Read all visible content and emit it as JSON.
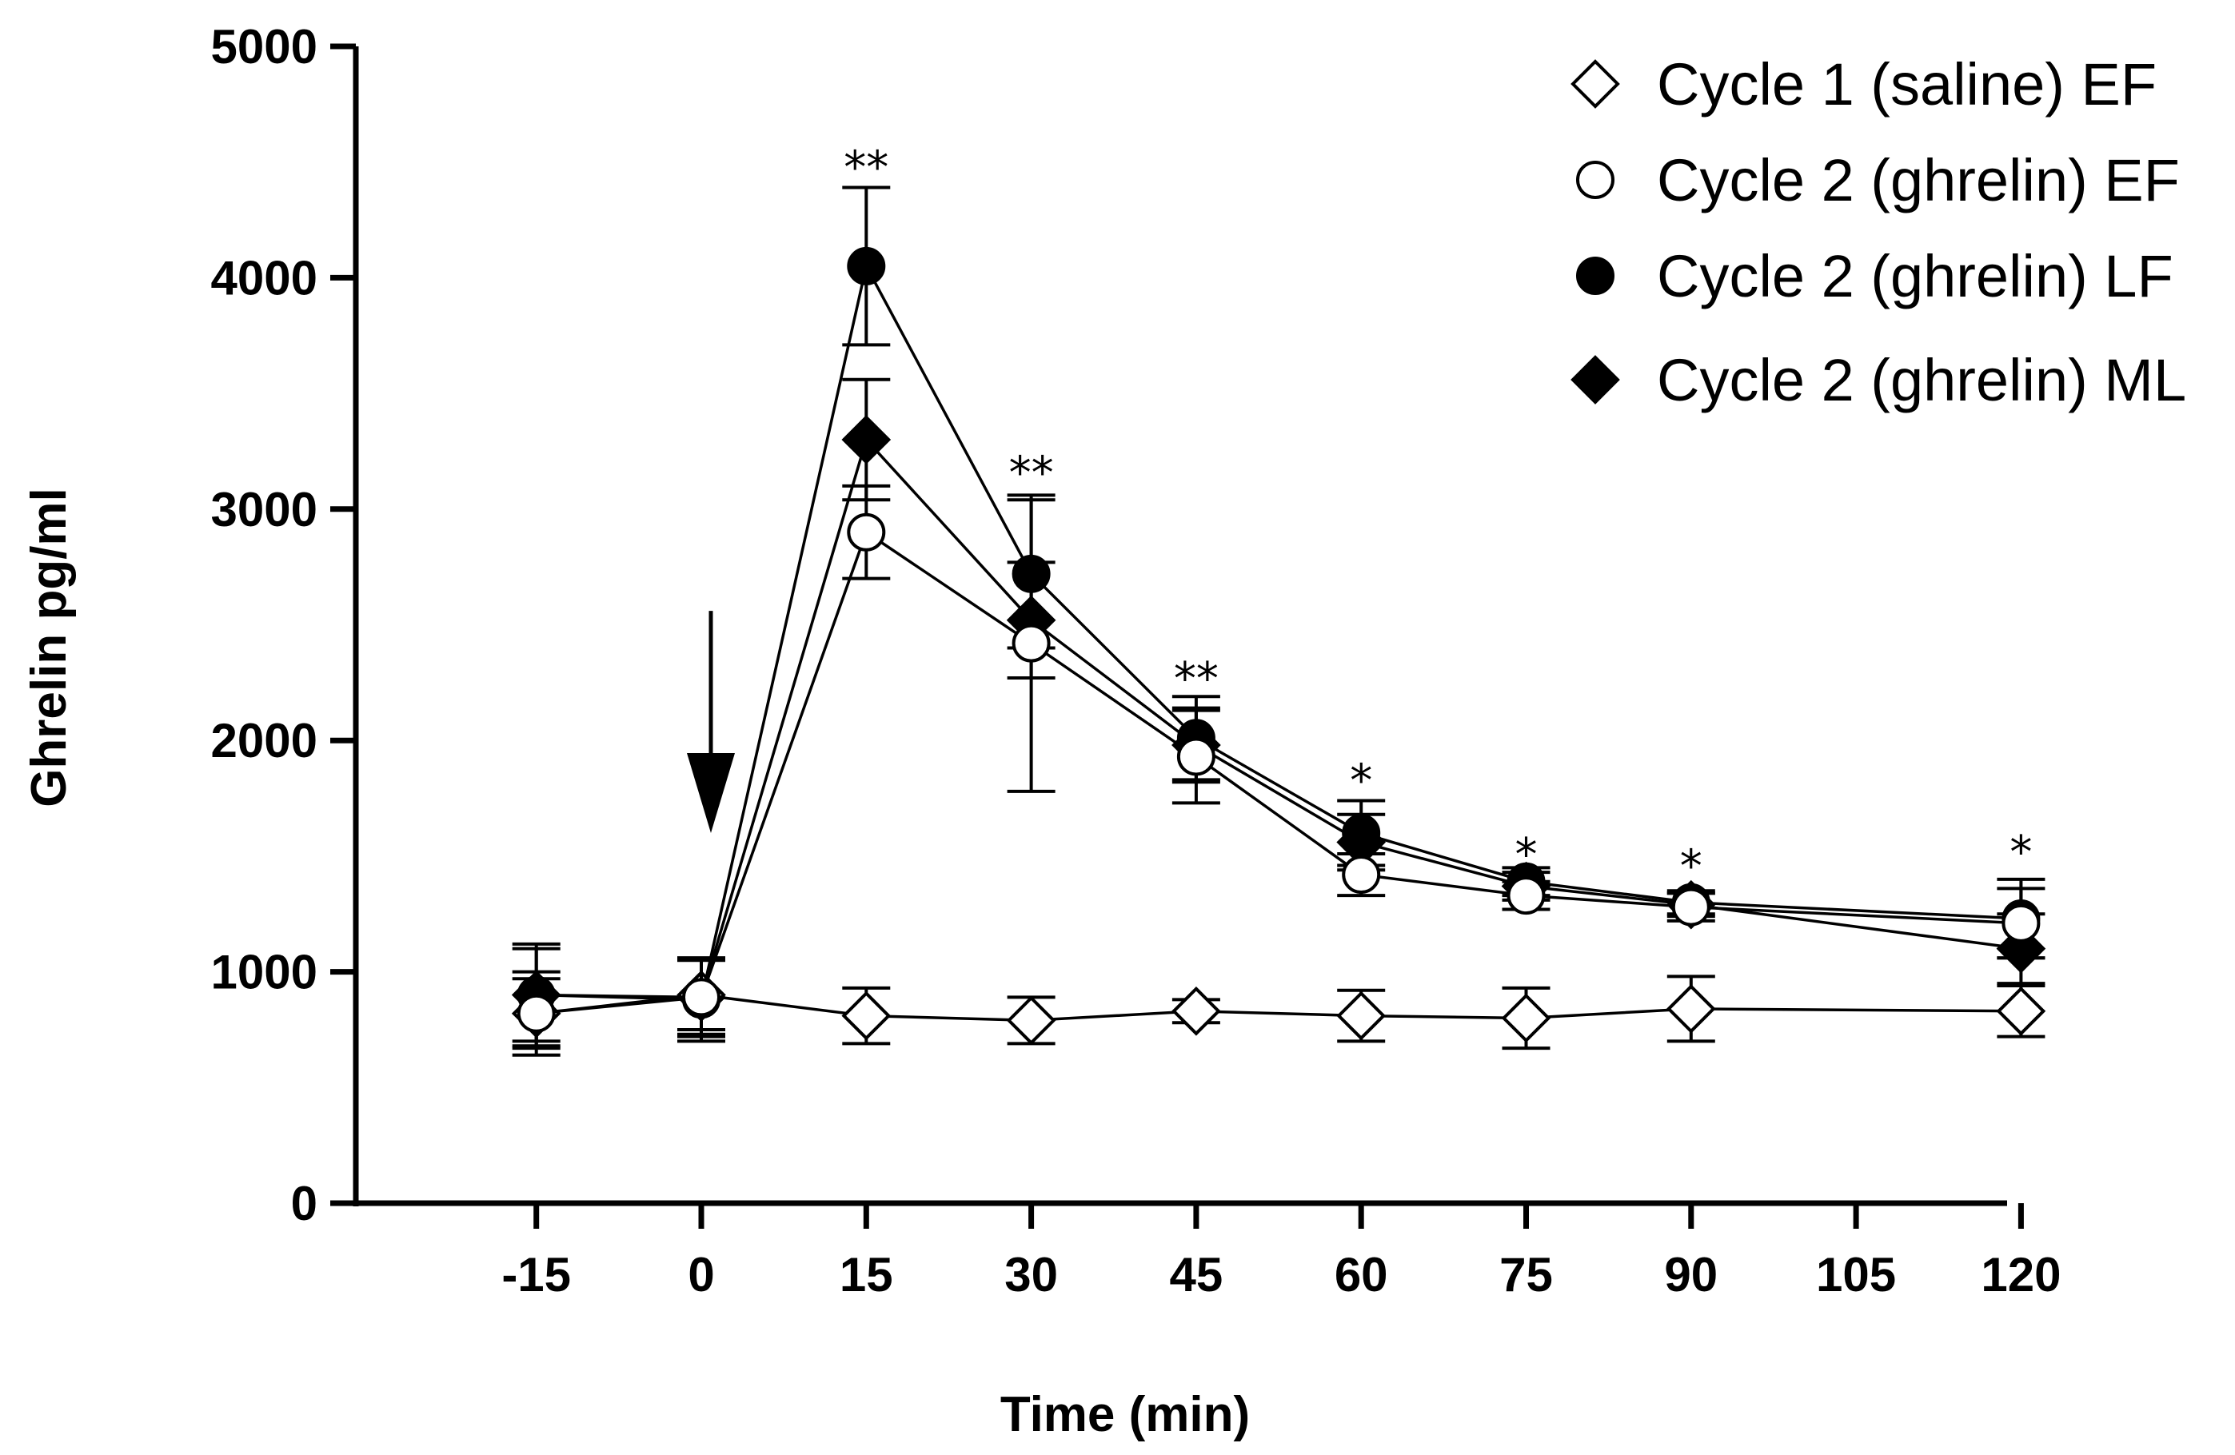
{
  "chart_data": {
    "type": "line",
    "title": "",
    "xlabel": "Time (min)",
    "ylabel": "Ghrelin pg/ml",
    "xlim": [
      -25,
      125
    ],
    "ylim": [
      0,
      5000
    ],
    "x_ticks": [
      -15,
      0,
      15,
      30,
      45,
      60,
      75,
      90,
      105,
      120
    ],
    "x_tick_labels": [
      "-15",
      "0",
      "15",
      "30",
      "45",
      "60",
      "75",
      "90",
      "105",
      "120"
    ],
    "y_ticks": [
      0,
      1000,
      2000,
      3000,
      4000,
      5000
    ],
    "y_tick_labels": [
      "0",
      "1000",
      "2000",
      "3000",
      "4000",
      "5000"
    ],
    "grid": false,
    "legend_position": "top-right",
    "series": [
      {
        "name": "Cycle 1 (saline) EF",
        "marker": "open-diamond",
        "x": [
          -15,
          0,
          15,
          30,
          45,
          60,
          75,
          90,
          120
        ],
        "values": [
          820,
          900,
          810,
          790,
          830,
          810,
          800,
          840,
          830
        ],
        "errors": [
          150,
          150,
          120,
          100,
          50,
          110,
          130,
          140,
          110
        ]
      },
      {
        "name": "Cycle 2 (ghrelin) EF",
        "marker": "open-circle",
        "x": [
          -15,
          0,
          15,
          30,
          45,
          60,
          75,
          90,
          120
        ],
        "values": [
          820,
          890,
          2900,
          2420,
          1930,
          1420,
          1330,
          1280,
          1210
        ],
        "errors": [
          180,
          170,
          200,
          640,
          200,
          90,
          60,
          60,
          150
        ]
      },
      {
        "name": "Cycle 2 (ghrelin) LF",
        "marker": "filled-circle",
        "x": [
          -15,
          0,
          15,
          30,
          45,
          60,
          75,
          90,
          120
        ],
        "values": [
          900,
          880,
          4050,
          2720,
          2010,
          1600,
          1390,
          1300,
          1230
        ],
        "errors": [
          220,
          180,
          340,
          320,
          180,
          140,
          60,
          50,
          170
        ]
      },
      {
        "name": "Cycle 2 (ghrelin) ML",
        "marker": "filled-diamond",
        "x": [
          -15,
          0,
          15,
          30,
          45,
          60,
          75,
          90,
          120
        ],
        "values": [
          900,
          890,
          3300,
          2520,
          1980,
          1560,
          1370,
          1290,
          1100
        ],
        "errors": [
          200,
          160,
          260,
          250,
          160,
          120,
          60,
          50,
          150
        ]
      }
    ],
    "annotations": [
      {
        "x": 15,
        "y": 4480,
        "text": "**"
      },
      {
        "x": 30,
        "y": 3160,
        "text": "**"
      },
      {
        "x": 45,
        "y": 2270,
        "text": "**"
      },
      {
        "x": 60,
        "y": 1830,
        "text": "*"
      },
      {
        "x": 75,
        "y": 1510,
        "text": "*"
      },
      {
        "x": 90,
        "y": 1460,
        "text": "*"
      },
      {
        "x": 120,
        "y": 1520,
        "text": "*"
      }
    ],
    "arrow": {
      "x": 0,
      "y_from": 2560,
      "y_to": 1600
    }
  }
}
